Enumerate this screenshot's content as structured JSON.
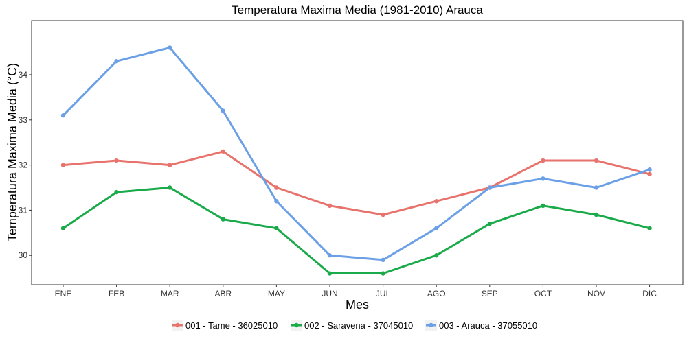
{
  "chart_data": {
    "type": "line",
    "title": "Temperatura Maxima Media (1981-2010)  Arauca",
    "xlabel": "Mes",
    "ylabel": "Temperatura Maxima Media  (°C)",
    "categories": [
      "ENE",
      "FEB",
      "MAR",
      "ABR",
      "MAY",
      "JUN",
      "JUL",
      "AGO",
      "SEP",
      "OCT",
      "NOV",
      "DIC"
    ],
    "ylim": [
      29.35,
      35.2
    ],
    "yticks": [
      30,
      31,
      32,
      33,
      34
    ],
    "grid": false,
    "legend_position": "bottom",
    "series": [
      {
        "name": "001 - Tame - 36025010",
        "color": "#e8736c",
        "values": [
          32.0,
          32.1,
          32.0,
          32.3,
          31.5,
          31.1,
          30.9,
          31.2,
          31.5,
          32.1,
          32.1,
          31.8
        ]
      },
      {
        "name": "002 - Saravena - 37045010",
        "color": "#1aaa4a",
        "values": [
          30.6,
          31.4,
          31.5,
          30.8,
          30.6,
          29.6,
          29.6,
          30.0,
          30.7,
          31.1,
          30.9,
          30.6
        ]
      },
      {
        "name": "003 - Arauca - 37055010",
        "color": "#6b9fe6",
        "values": [
          33.1,
          34.3,
          34.6,
          33.2,
          31.2,
          30.0,
          29.9,
          30.6,
          31.5,
          31.7,
          31.5,
          31.9
        ]
      }
    ]
  }
}
